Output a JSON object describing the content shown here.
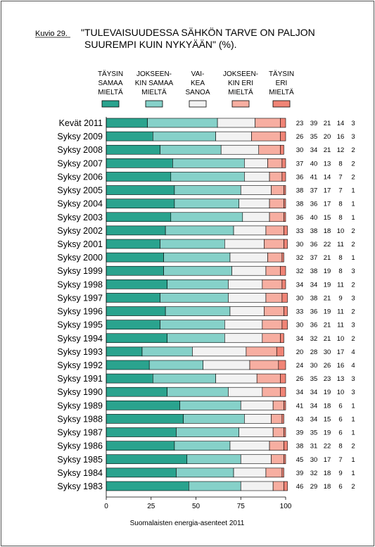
{
  "figure": {
    "label": "Kuvio 29.",
    "title_line1": "\"TULEVAISUUDESSA SÄHKÖN TARVE ON PALJON",
    "title_line2": "SUUREMPI KUIN NYKYÄÄN\" (%).",
    "source": "Suomalaisten energia-asenteet 2011"
  },
  "legend": [
    {
      "lines": [
        "TÄYSIN",
        "SAMAA",
        "MIELTÄ"
      ],
      "color": "#2aa38e"
    },
    {
      "lines": [
        "JOKSEEN-",
        "KIN SAMAA",
        "MIELTÄ"
      ],
      "color": "#86d1c9"
    },
    {
      "lines": [
        "VAI-",
        "KEA",
        "SANOA"
      ],
      "color": "#f2f2f2"
    },
    {
      "lines": [
        "JOKSEEN-",
        "KIN ERI",
        "MIELTÄ"
      ],
      "color": "#f7aea1"
    },
    {
      "lines": [
        "TÄYSIN",
        "ERI",
        "MIELTÄ"
      ],
      "color": "#f08476"
    }
  ],
  "chart_data": {
    "type": "bar",
    "orientation": "horizontal",
    "stacked": true,
    "categories": [
      "Kevät 2011",
      "Syksy 2009",
      "Syksy 2008",
      "Syksy 2007",
      "Syksy 2006",
      "Syksy 2005",
      "Syksy 2004",
      "Syksy 2003",
      "Syksy 2002",
      "Syksy 2001",
      "Syksy 2000",
      "Syksy 1999",
      "Syksy 1998",
      "Syksy 1997",
      "Syksy 1996",
      "Syksy 1995",
      "Syksy 1994",
      "Syksy 1993",
      "Syksy 1992",
      "Syksy 1991",
      "Syksy 1990",
      "Syksy 1989",
      "Syksy 1988",
      "Syksy 1987",
      "Syksy 1986",
      "Syksy 1985",
      "Syksy 1984",
      "Syksy 1983"
    ],
    "series": [
      {
        "name": "TÄYSIN SAMAA MIELTÄ",
        "values": [
          23,
          26,
          30,
          37,
          36,
          38,
          38,
          36,
          33,
          30,
          32,
          32,
          34,
          30,
          33,
          30,
          34,
          20,
          24,
          26,
          34,
          41,
          43,
          39,
          38,
          45,
          39,
          46
        ]
      },
      {
        "name": "JOKSEENKIN SAMAA MIELTÄ",
        "values": [
          39,
          35,
          34,
          40,
          41,
          37,
          36,
          40,
          38,
          36,
          37,
          38,
          34,
          38,
          36,
          36,
          32,
          28,
          30,
          35,
          34,
          34,
          34,
          35,
          31,
          30,
          32,
          29
        ]
      },
      {
        "name": "VAIKEA SANOA",
        "values": [
          21,
          20,
          21,
          13,
          14,
          17,
          17,
          15,
          18,
          22,
          21,
          19,
          19,
          21,
          19,
          21,
          21,
          30,
          26,
          23,
          19,
          18,
          15,
          19,
          22,
          17,
          18,
          18
        ]
      },
      {
        "name": "JOKSEENKIN ERI MIELTÄ",
        "values": [
          14,
          16,
          12,
          8,
          7,
          7,
          8,
          8,
          10,
          11,
          8,
          8,
          11,
          9,
          11,
          11,
          10,
          17,
          16,
          13,
          10,
          6,
          6,
          6,
          8,
          7,
          9,
          6
        ]
      },
      {
        "name": "TÄYSIN ERI MIELTÄ",
        "values": [
          3,
          3,
          2,
          2,
          2,
          1,
          1,
          1,
          2,
          2,
          1,
          3,
          2,
          3,
          2,
          3,
          2,
          4,
          4,
          3,
          3,
          1,
          1,
          1,
          2,
          1,
          1,
          2
        ]
      }
    ],
    "xlim": [
      0,
      100
    ],
    "xticks": [
      "0",
      "25",
      "50",
      "75",
      "100"
    ],
    "xlabel": "",
    "ylabel": "",
    "grid": false,
    "legend_position": "top"
  }
}
